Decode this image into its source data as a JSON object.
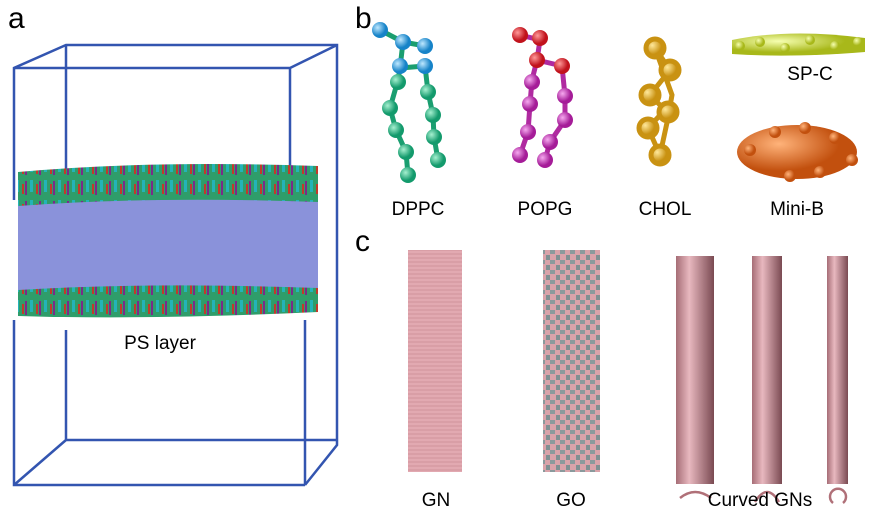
{
  "panel_a": {
    "label": "a",
    "annotation": "PS layer"
  },
  "panel_b": {
    "label": "b",
    "molecules": [
      "DPPC",
      "POPG",
      "CHOL",
      "Mini-B"
    ],
    "peptide": "SP-C"
  },
  "panel_c": {
    "label": "c",
    "sheets": [
      "GN",
      "GO",
      "Curved GNs"
    ]
  }
}
